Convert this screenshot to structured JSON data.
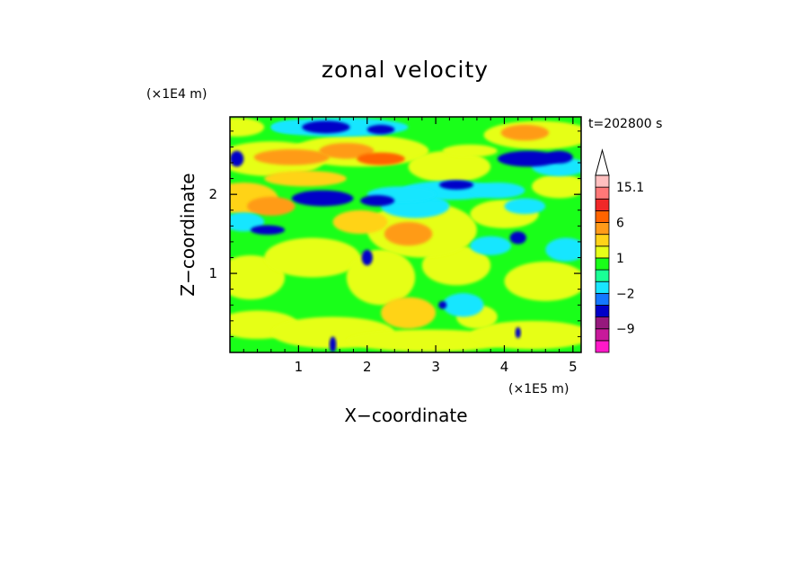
{
  "chart_data": {
    "type": "heatmap",
    "title": "zonal velocity",
    "xlabel": "X−coordinate",
    "ylabel": "Z−coordinate",
    "x_unit": "(×1E5 m)",
    "y_unit": "(×1E4 m)",
    "time_label": "t=202800 s",
    "xlim": [
      0,
      5.12
    ],
    "ylim": [
      0,
      2.98
    ],
    "x_ticks": [
      {
        "v": 1,
        "label": "1"
      },
      {
        "v": 2,
        "label": "2"
      },
      {
        "v": 3,
        "label": "3"
      },
      {
        "v": 4,
        "label": "4"
      },
      {
        "v": 5,
        "label": "5"
      }
    ],
    "y_ticks": [
      {
        "v": 1,
        "label": "1"
      },
      {
        "v": 2,
        "label": "2"
      }
    ],
    "colorbar": {
      "levels": [
        -15,
        -12,
        -9,
        -6,
        -3,
        -2,
        -1,
        0,
        1,
        2,
        3,
        6,
        9,
        12,
        15.1
      ],
      "colors": [
        "#ff19c8",
        "#c8199b",
        "#96197d",
        "#0000c8",
        "#1478ff",
        "#19e6ff",
        "#19ff96",
        "#19ff19",
        "#e6ff19",
        "#ffd319",
        "#ff9b19",
        "#ff6400",
        "#f02828",
        "#ff7878",
        "#ffc0c0"
      ],
      "labels": [
        {
          "v": 15.1,
          "label": "15.1"
        },
        {
          "v": 6,
          "label": "6"
        },
        {
          "v": 1,
          "label": "1"
        },
        {
          "v": -2,
          "label": "−2"
        },
        {
          "v": -9,
          "label": "−9"
        }
      ]
    }
  }
}
